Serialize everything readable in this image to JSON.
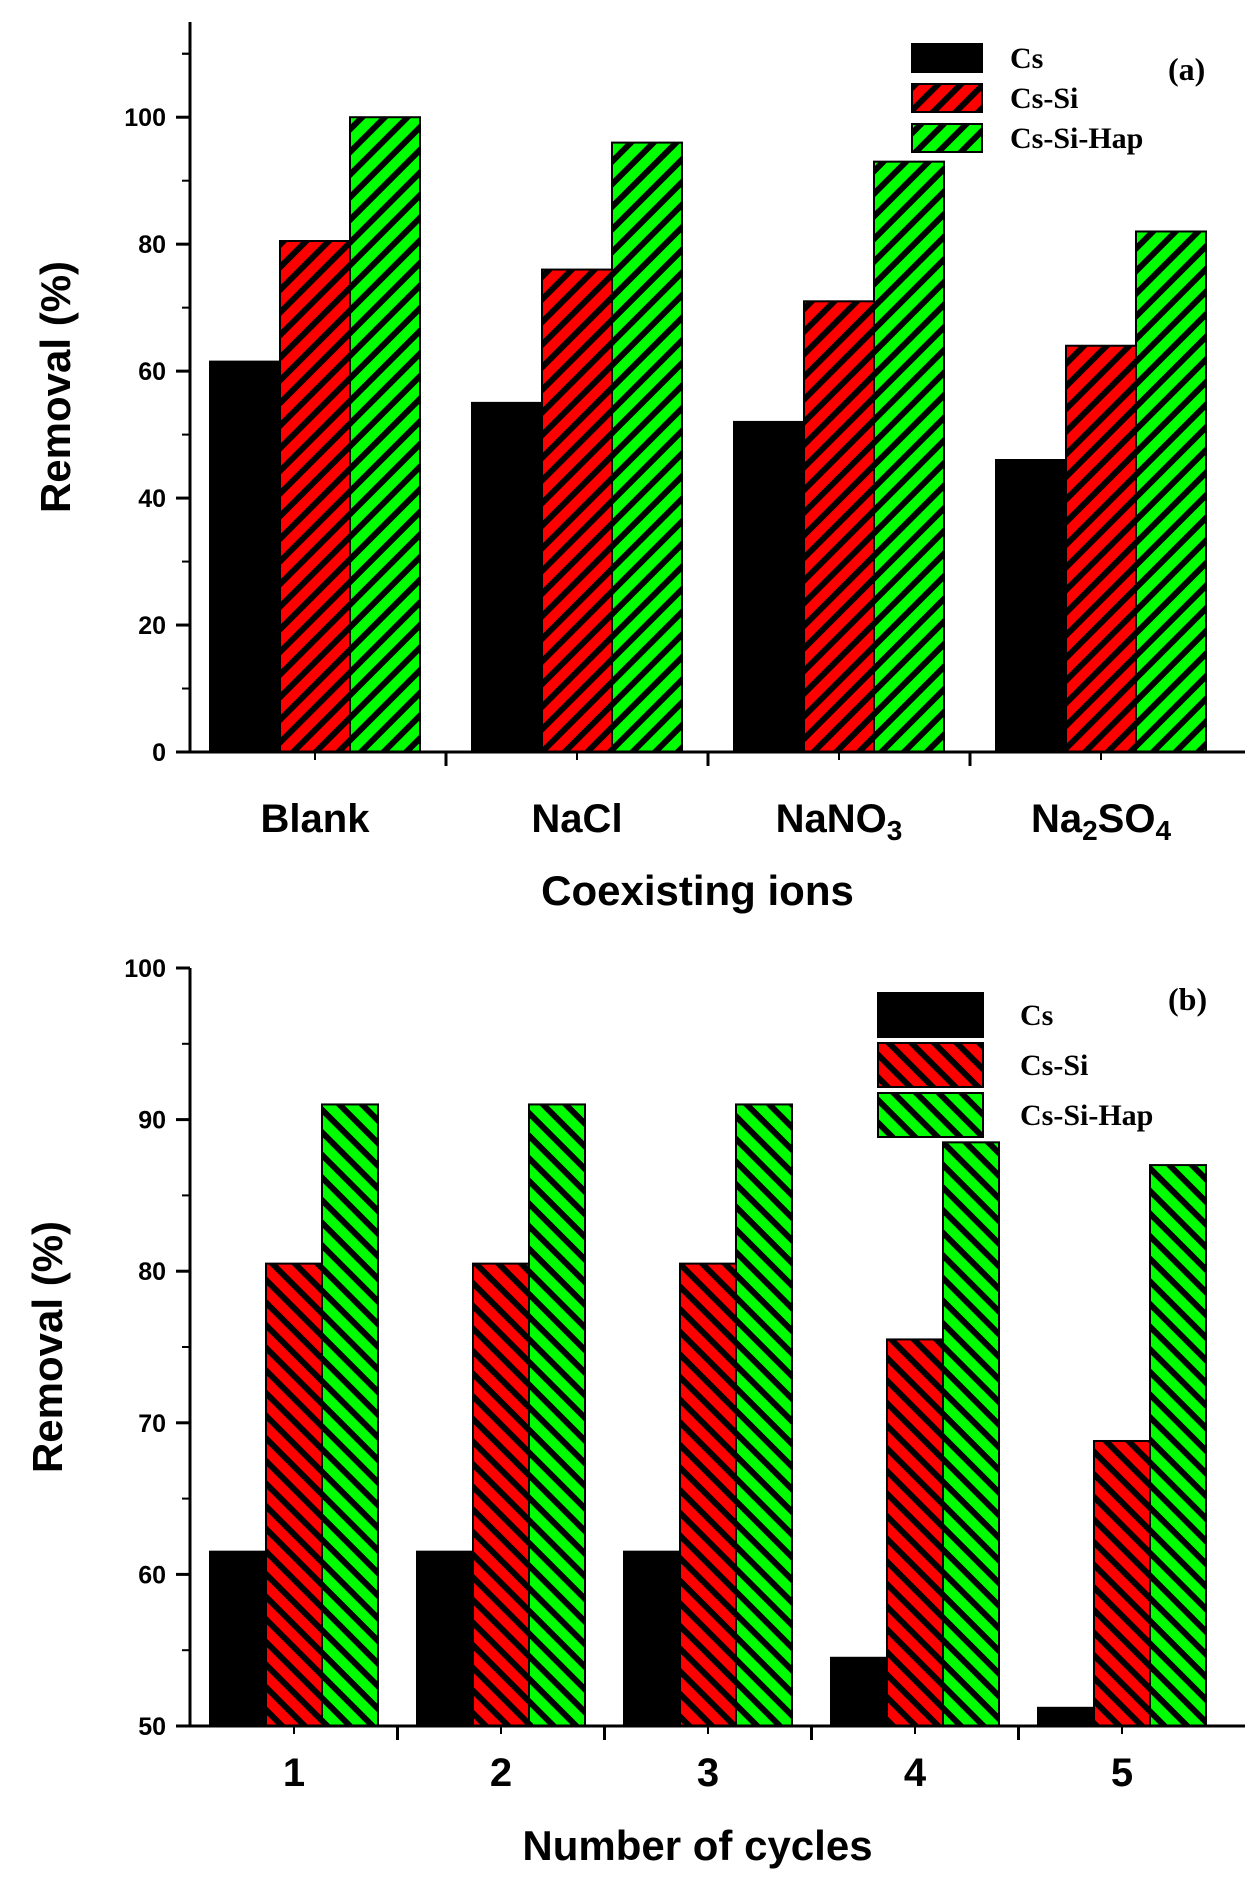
{
  "chart_data": [
    {
      "type": "bar",
      "panel_label": "(a)",
      "categories": [
        "Blank",
        "NaCl",
        "NaNO3",
        "Na2SO4"
      ],
      "category_display": [
        [
          {
            "t": "Blank"
          }
        ],
        [
          {
            "t": "NaCl"
          }
        ],
        [
          {
            "t": "NaNO"
          },
          {
            "t": "3",
            "sub": true
          }
        ],
        [
          {
            "t": "Na"
          },
          {
            "t": "2",
            "sub": true
          },
          {
            "t": "SO"
          },
          {
            "t": "4",
            "sub": true
          }
        ]
      ],
      "series": [
        {
          "name": "Cs",
          "values": [
            61.5,
            55,
            52,
            46
          ]
        },
        {
          "name": "Cs-Si",
          "values": [
            80.5,
            76,
            71,
            64
          ]
        },
        {
          "name": "Cs-Si-Hap",
          "values": [
            100,
            96,
            93,
            82
          ]
        }
      ],
      "xlabel": "Coexisting ions",
      "ylabel": "Removal (%)",
      "ylim": [
        0,
        115
      ],
      "yticks": [
        0,
        20,
        40,
        60,
        80,
        100
      ],
      "legend_position": "top-right"
    },
    {
      "type": "bar",
      "panel_label": "(b)",
      "categories": [
        "1",
        "2",
        "3",
        "4",
        "5"
      ],
      "series": [
        {
          "name": "Cs",
          "values": [
            61.5,
            61.5,
            61.5,
            54.5,
            51.2
          ]
        },
        {
          "name": "Cs-Si",
          "values": [
            80.5,
            80.5,
            80.5,
            75.5,
            68.8
          ]
        },
        {
          "name": "Cs-Si-Hap",
          "values": [
            91,
            91,
            91,
            88.5,
            87
          ]
        }
      ],
      "xlabel": "Number of cycles",
      "ylabel": "Removal (%)",
      "ylim": [
        50,
        100
      ],
      "yticks": [
        50,
        60,
        70,
        80,
        90,
        100
      ],
      "legend_position": "top-right"
    }
  ],
  "colors": {
    "Cs": "#000000",
    "Cs-Si": "#ff0000",
    "Cs-Si-Hap": "#00ff00",
    "axis": "#000000"
  }
}
